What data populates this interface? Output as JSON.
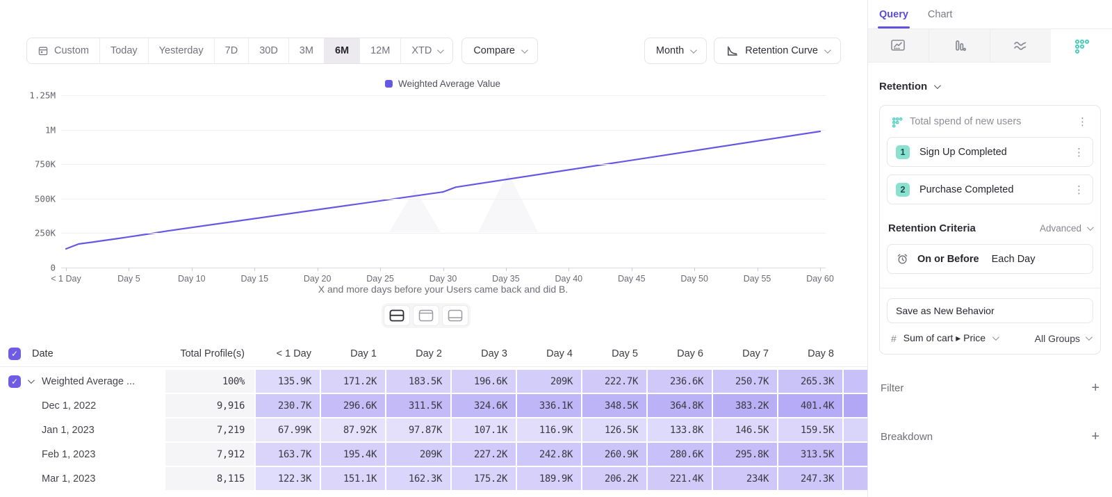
{
  "toolbar": {
    "date_ranges": [
      "Custom",
      "Today",
      "Yesterday",
      "7D",
      "30D",
      "3M",
      "6M",
      "12M",
      "XTD"
    ],
    "selected_range": "6M",
    "compare_label": "Compare",
    "granularity_label": "Month",
    "chart_style_label": "Retention Curve"
  },
  "chart_data": {
    "type": "line",
    "legend": "Weighted Average Value",
    "line_color": "#6457e4",
    "xlabel": "X and more days before your Users came back and did B.",
    "x_tick_labels": [
      "< 1 Day",
      "Day 5",
      "Day 10",
      "Day 15",
      "Day 20",
      "Day 25",
      "Day 30",
      "Day 35",
      "Day 40",
      "Day 45",
      "Day 50",
      "Day 55",
      "Day 60"
    ],
    "x_tick_days": [
      0,
      5,
      10,
      15,
      20,
      25,
      30,
      35,
      40,
      45,
      50,
      55,
      60
    ],
    "y_tick_labels": [
      "0",
      "250K",
      "500K",
      "750K",
      "1M",
      "1.25M"
    ],
    "y_tick_values": [
      0,
      250000,
      500000,
      750000,
      1000000,
      1250000
    ],
    "xlim": [
      0,
      60
    ],
    "ylim": [
      0,
      1250000
    ],
    "series": [
      {
        "name": "Weighted Average Value",
        "points": [
          [
            0,
            135900
          ],
          [
            1,
            171200
          ],
          [
            2,
            183500
          ],
          [
            3,
            196600
          ],
          [
            4,
            209000
          ],
          [
            5,
            222700
          ],
          [
            6,
            236600
          ],
          [
            7,
            250700
          ],
          [
            8,
            265300
          ],
          [
            30,
            549000
          ],
          [
            31,
            583000
          ],
          [
            60,
            988000
          ]
        ]
      }
    ]
  },
  "table": {
    "columns": [
      "Date",
      "Total Profile(s)",
      "< 1 Day",
      "Day 1",
      "Day 2",
      "Day 3",
      "Day 4",
      "Day 5",
      "Day 6",
      "Day 7",
      "Day 8"
    ],
    "rows": [
      {
        "label": "Weighted Average ...",
        "checked": true,
        "expandable": true,
        "total": "100%",
        "values": [
          "135.9K",
          "171.2K",
          "183.5K",
          "196.6K",
          "209K",
          "222.7K",
          "236.6K",
          "250.7K",
          "265.3K"
        ]
      },
      {
        "label": "Dec 1, 2022",
        "total": "9,916",
        "values": [
          "230.7K",
          "296.6K",
          "311.5K",
          "324.6K",
          "336.1K",
          "348.5K",
          "364.8K",
          "383.2K",
          "401.4K"
        ]
      },
      {
        "label": "Jan 1, 2023",
        "total": "7,219",
        "values": [
          "67.99K",
          "87.92K",
          "97.87K",
          "107.1K",
          "116.9K",
          "126.5K",
          "133.8K",
          "146.5K",
          "159.5K"
        ]
      },
      {
        "label": "Feb 1, 2023",
        "total": "7,912",
        "values": [
          "163.7K",
          "195.4K",
          "209K",
          "227.2K",
          "242.8K",
          "260.9K",
          "280.6K",
          "295.8K",
          "313.5K"
        ]
      },
      {
        "label": "Mar 1, 2023",
        "total": "8,115",
        "values": [
          "122.3K",
          "151.1K",
          "162.3K",
          "175.2K",
          "189.9K",
          "206.2K",
          "221.4K",
          "234K",
          "247.3K"
        ]
      }
    ]
  },
  "sidebar": {
    "tabs": [
      {
        "label": "Query",
        "active": true
      },
      {
        "label": "Chart",
        "active": false
      }
    ],
    "report_tabs": [
      "insights",
      "funnels",
      "flows",
      "retention"
    ],
    "active_report_tab": "retention",
    "section_label": "Retention",
    "behavior_title": "Total spend of new users",
    "steps": [
      {
        "num": "1",
        "label": "Sign Up Completed"
      },
      {
        "num": "2",
        "label": "Purchase Completed"
      }
    ],
    "criteria_label": "Retention Criteria",
    "criteria_mode": "Advanced",
    "criteria_condition": "On or Before",
    "criteria_window": "Each Day",
    "save_behavior_label": "Save as New Behavior",
    "measure_prefix": "#",
    "measure_label": "Sum of cart ▸ Price",
    "groups_label": "All Groups",
    "filter_label": "Filter",
    "breakdown_label": "Breakdown"
  },
  "colors": {
    "accent": "#6457e4",
    "teal": "#4fd0bd",
    "cell_purple": "#7b68ee",
    "selected_segment_bg": "#eceaef"
  }
}
